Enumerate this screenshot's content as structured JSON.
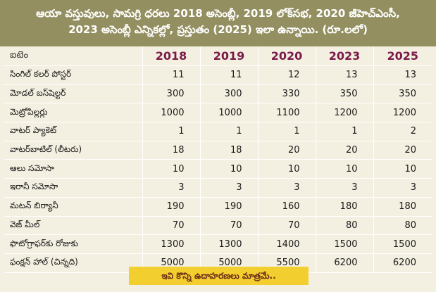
{
  "title": {
    "line1": "ఆయా వస్తువులు, సామగ్రి ధరలు 2018 అసెంబ్లీ, 2019 లోక్‌సభ, 2020 జీహెచ్‌ఎంసీ,",
    "line2": "2023 అసెంబ్లీ ఎన్నికల్లో, ప్రస్తుతం (2025) ఇలా ఉన్నాయి. (రూ.లలో)"
  },
  "table": {
    "item_header": "ఐటెం",
    "years": [
      "2018",
      "2019",
      "2020",
      "2023",
      "2025"
    ],
    "rows": [
      {
        "item": "సింగిల్ కలర్ పోస్టర్",
        "values": [
          "11",
          "11",
          "12",
          "13",
          "13"
        ]
      },
      {
        "item": "మోడల్ బస్‌షెల్టర్",
        "values": [
          "300",
          "300",
          "330",
          "350",
          "350"
        ]
      },
      {
        "item": "మెట్రోపిల్లర్లు",
        "values": [
          "1000",
          "1000",
          "1100",
          "1200",
          "1200"
        ]
      },
      {
        "item": "వాటర్ ప్యాకెట్",
        "values": [
          "1",
          "1",
          "1",
          "1",
          "2"
        ]
      },
      {
        "item": "వాటర్‌బాటిల్ (లీటరు)",
        "values": [
          "18",
          "18",
          "20",
          "20",
          "20"
        ]
      },
      {
        "item": "ఆలు సమోసా",
        "values": [
          "10",
          "10",
          "10",
          "10",
          "10"
        ]
      },
      {
        "item": "ఇరానీ సమోసా",
        "values": [
          "3",
          "3",
          "3",
          "3",
          "3"
        ]
      },
      {
        "item": "మటన్ బిర్యానీ",
        "values": [
          "190",
          "190",
          "160",
          "180",
          "180"
        ]
      },
      {
        "item": "వెజ్ మీల్",
        "values": [
          "70",
          "70",
          "70",
          "80",
          "80"
        ]
      },
      {
        "item": "ఫొటోగ్రాఫర్‌కు రోజుకు",
        "values": [
          "1300",
          "1300",
          "1400",
          "1500",
          "1500"
        ]
      },
      {
        "item": "ఫంక్షన్ హాల్ (చిన్నది)",
        "values": [
          "5000",
          "5000",
          "5500",
          "6200",
          "6200"
        ]
      }
    ]
  },
  "footer": {
    "note": "ఇవి కొన్ని ఉదాహరణలు మాత్రమే.."
  },
  "colors": {
    "title_bg": "#938f61",
    "table_bg": "#f4f0e1",
    "year_text": "#7a1a48",
    "footer_bg": "#f2cf2e"
  }
}
